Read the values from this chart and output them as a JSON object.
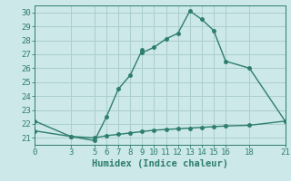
{
  "title": "",
  "xlabel": "Humidex (Indice chaleur)",
  "ylabel": "",
  "bg_color": "#cce8e8",
  "line_color": "#2e7d70",
  "grid_color": "#aacece",
  "xlim": [
    0,
    21
  ],
  "ylim": [
    20.5,
    30.5
  ],
  "xticks": [
    0,
    3,
    5,
    6,
    7,
    8,
    9,
    10,
    11,
    12,
    13,
    14,
    15,
    16,
    18,
    21
  ],
  "yticks": [
    21,
    22,
    23,
    24,
    25,
    26,
    27,
    28,
    29,
    30
  ],
  "curve1_x": [
    0,
    3,
    5,
    6,
    7,
    8,
    9,
    9,
    10,
    11,
    12,
    13,
    14,
    15,
    16,
    18,
    21
  ],
  "curve1_y": [
    22.2,
    21.1,
    20.8,
    22.5,
    24.5,
    25.5,
    27.3,
    27.1,
    27.5,
    28.1,
    28.5,
    30.1,
    29.5,
    28.7,
    26.5,
    26.0,
    22.2
  ],
  "curve2_x": [
    0,
    3,
    5,
    6,
    7,
    8,
    9,
    10,
    11,
    12,
    13,
    14,
    15,
    16,
    18,
    21
  ],
  "curve2_y": [
    21.5,
    21.1,
    21.0,
    21.15,
    21.25,
    21.35,
    21.45,
    21.55,
    21.6,
    21.65,
    21.7,
    21.75,
    21.8,
    21.85,
    21.9,
    22.2
  ],
  "marker_size": 2.5,
  "linewidth": 1.0,
  "tick_fontsize": 6.5,
  "xlabel_fontsize": 7.5
}
